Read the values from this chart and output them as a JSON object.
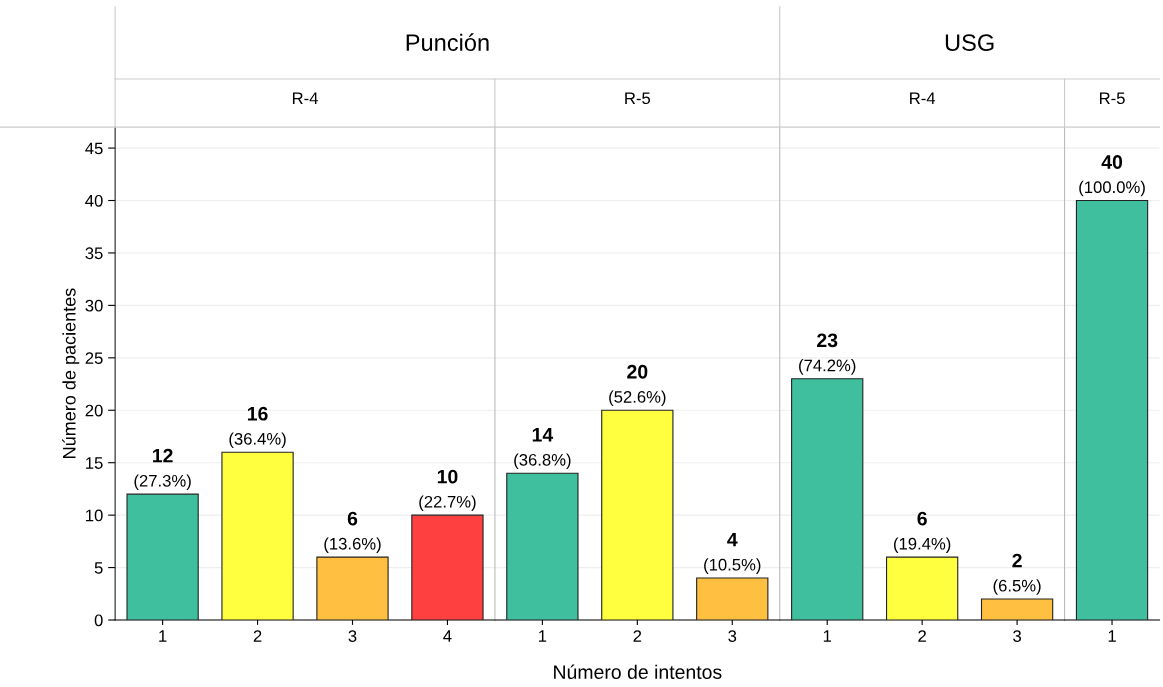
{
  "chart_data": [
    {
      "type": "bar",
      "title": "Punción",
      "subtitle": "R-4",
      "ylabel": "Número de pacientes",
      "categories": [
        "1",
        "2",
        "3",
        "4"
      ],
      "values": [
        12,
        16,
        6,
        10
      ],
      "colors": [
        "#40bf9f",
        "#ffff40",
        "#ffbf40",
        "#ff4040"
      ],
      "value_labels": [
        "12\n(27.3%)",
        "16\n(36.4%)",
        "6\n(13.6%)",
        "10\n(22.7%)"
      ],
      "ylim": [
        0,
        47
      ],
      "yticks": [
        0,
        5,
        10,
        15,
        20,
        25,
        30,
        35,
        40,
        45
      ],
      "grid": "y"
    },
    {
      "type": "bar",
      "subtitle": "R-5",
      "xlabel": "Número de intentos",
      "categories": [
        "1",
        "2",
        "3"
      ],
      "values": [
        14,
        20,
        4
      ],
      "colors": [
        "#40bf9f",
        "#ffff40",
        "#ffbf40"
      ],
      "value_labels": [
        "14\n(36.8%)",
        "20\n(52.6%)",
        "4\n(10.5%)"
      ],
      "ylim": [
        0,
        47
      ],
      "yticks": [
        0,
        5,
        10,
        15,
        20,
        25,
        30,
        35,
        40,
        45
      ],
      "grid": "y",
      "tick_labels": "x"
    },
    {
      "type": "bar",
      "title": "USG",
      "subtitle": "R-4",
      "categories": [
        "1",
        "2",
        "3"
      ],
      "values": [
        23,
        6,
        2
      ],
      "colors": [
        "#40bf9f",
        "#ffff40",
        "#ffbf40"
      ],
      "value_labels": [
        "23\n(74.2%)",
        "6\n(19.4%)",
        "2\n(6.5%)"
      ],
      "ylim": [
        0,
        47
      ],
      "yticks": [
        0,
        5,
        10,
        15,
        20,
        25,
        30,
        35,
        40,
        45
      ],
      "grid": "y",
      "tick_labels": "x"
    },
    {
      "type": "bar",
      "subtitle": "R-5",
      "categories": [
        "1"
      ],
      "values": [
        40
      ],
      "colors": [
        "#40bf9f"
      ],
      "value_labels": [
        "40\n(100.0%)"
      ],
      "ylim": [
        0,
        47
      ],
      "yticks": [
        0,
        5,
        10,
        15,
        20,
        25,
        30,
        35,
        40,
        45
      ],
      "grid": "y",
      "tick_labels": "x"
    }
  ]
}
